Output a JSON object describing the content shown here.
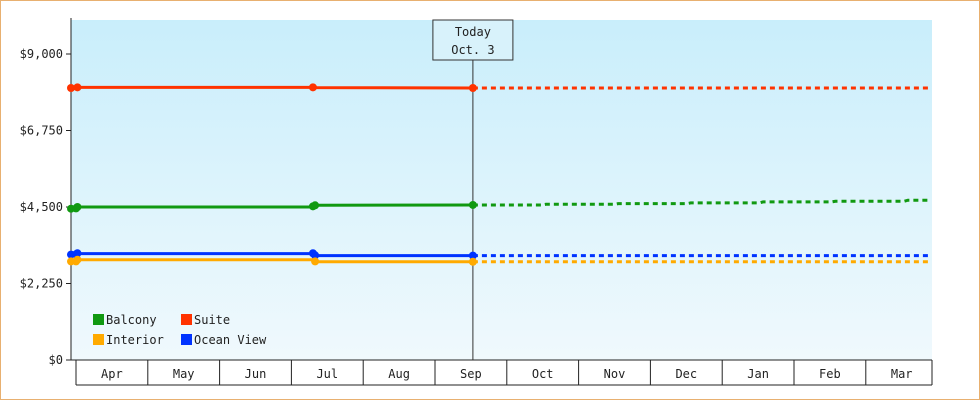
{
  "chart_data": {
    "type": "line",
    "title": "",
    "xlabel": "",
    "ylabel": "",
    "ylim": [
      0,
      10000
    ],
    "y_ticks": [
      {
        "value": 0,
        "label": "$0"
      },
      {
        "value": 2250,
        "label": "$2,250"
      },
      {
        "value": 4500,
        "label": "$4,500"
      },
      {
        "value": 6750,
        "label": "$6,750"
      },
      {
        "value": 9000,
        "label": "$9,000"
      }
    ],
    "x_months": [
      "Apr",
      "May",
      "Jun",
      "Jul",
      "Aug",
      "Sep",
      "Oct",
      "Nov",
      "Dec",
      "Jan",
      "Feb",
      "Mar"
    ],
    "x_start_month_index": -0.06,
    "x_end_month_index": 11.95,
    "today": {
      "line1": "Today",
      "line2": "Oct. 3",
      "month_index": 6.0
    },
    "legend_position": "bottom-left",
    "series": [
      {
        "name": "Suite",
        "color": "#ff3300",
        "solid": [
          [
            -0.06,
            8000
          ],
          [
            0.0,
            8000
          ],
          [
            0.02,
            8020
          ],
          [
            3.3,
            8020
          ],
          [
            3.35,
            8010
          ],
          [
            6.0,
            8000
          ]
        ],
        "markers": [
          [
            -0.06,
            8000
          ],
          [
            0.02,
            8020
          ],
          [
            3.3,
            8020
          ],
          [
            6.0,
            8000
          ]
        ],
        "forecast": [
          [
            6.0,
            8000
          ],
          [
            11.95,
            8000
          ]
        ]
      },
      {
        "name": "Balcony",
        "color": "#119911",
        "solid": [
          [
            -0.06,
            4450
          ],
          [
            0.0,
            4450
          ],
          [
            0.02,
            4500
          ],
          [
            3.3,
            4500
          ],
          [
            3.35,
            4550
          ],
          [
            6.0,
            4560
          ]
        ],
        "markers": [
          [
            -0.06,
            4450
          ],
          [
            0.0,
            4460
          ],
          [
            0.02,
            4500
          ],
          [
            3.3,
            4520
          ],
          [
            3.33,
            4550
          ],
          [
            6.0,
            4560
          ]
        ],
        "forecast": [
          [
            6.0,
            4560
          ],
          [
            6.5,
            4560
          ],
          [
            6.55,
            4580
          ],
          [
            7.5,
            4580
          ],
          [
            7.55,
            4600
          ],
          [
            8.5,
            4600
          ],
          [
            8.55,
            4620
          ],
          [
            9.5,
            4620
          ],
          [
            9.55,
            4650
          ],
          [
            10.5,
            4650
          ],
          [
            10.55,
            4670
          ],
          [
            11.5,
            4670
          ],
          [
            11.55,
            4700
          ],
          [
            11.95,
            4700
          ]
        ]
      },
      {
        "name": "Ocean View",
        "color": "#0033ff",
        "solid": [
          [
            -0.06,
            3100
          ],
          [
            0.0,
            3100
          ],
          [
            0.02,
            3130
          ],
          [
            3.3,
            3130
          ],
          [
            3.35,
            3070
          ],
          [
            6.0,
            3070
          ]
        ],
        "markers": [
          [
            -0.06,
            3100
          ],
          [
            0.0,
            3110
          ],
          [
            0.02,
            3140
          ],
          [
            3.3,
            3140
          ],
          [
            3.33,
            3080
          ],
          [
            6.0,
            3070
          ]
        ],
        "forecast": [
          [
            6.0,
            3070
          ],
          [
            11.95,
            3070
          ]
        ]
      },
      {
        "name": "Interior",
        "color": "#ffaa00",
        "solid": [
          [
            -0.06,
            2900
          ],
          [
            0.0,
            2900
          ],
          [
            0.02,
            2950
          ],
          [
            3.3,
            2950
          ],
          [
            3.35,
            2890
          ],
          [
            6.0,
            2890
          ]
        ],
        "markers": [
          [
            -0.06,
            2900
          ],
          [
            0.0,
            2900
          ],
          [
            0.02,
            2950
          ],
          [
            3.33,
            2900
          ],
          [
            6.0,
            2890
          ]
        ],
        "forecast": [
          [
            6.0,
            2890
          ],
          [
            11.95,
            2890
          ]
        ]
      }
    ],
    "legend": [
      {
        "name": "Balcony",
        "color": "#119911"
      },
      {
        "name": "Suite",
        "color": "#ff3300"
      },
      {
        "name": "Interior",
        "color": "#ffaa00"
      },
      {
        "name": "Ocean View",
        "color": "#0033ff"
      }
    ]
  }
}
